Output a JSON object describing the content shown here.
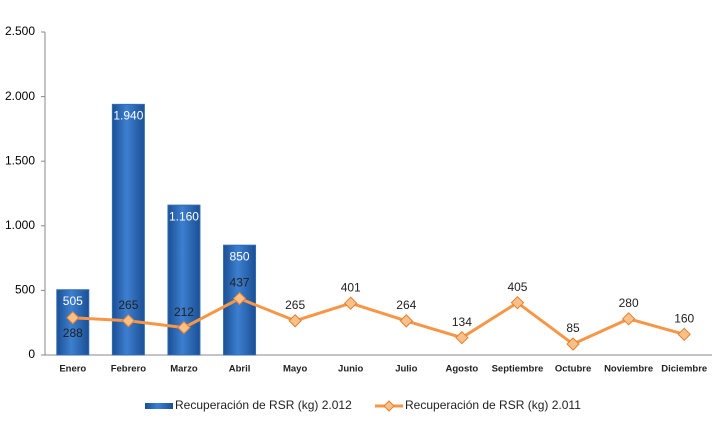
{
  "chart_data": {
    "type": "combo",
    "categories": [
      "Enero",
      "Febrero",
      "Marzo",
      "Abril",
      "Mayo",
      "Junio",
      "Julio",
      "Agosto",
      "Septiembre",
      "Octubre",
      "Noviembre",
      "Diciembre"
    ],
    "series": [
      {
        "name": "Recuperación de RSR (kg) 2.012",
        "type": "bar",
        "color": "#2f6db5",
        "values": [
          505,
          1940,
          1160,
          850,
          null,
          null,
          null,
          null,
          null,
          null,
          null,
          null
        ],
        "value_labels": [
          "505",
          "1.940",
          "1.160",
          "850",
          null,
          null,
          null,
          null,
          null,
          null,
          null,
          null
        ]
      },
      {
        "name": "Recuperación de RSR (kg) 2.011",
        "type": "line",
        "color": "#f79646",
        "values": [
          288,
          265,
          212,
          437,
          265,
          401,
          264,
          134,
          405,
          85,
          280,
          160
        ]
      }
    ],
    "ylim": [
      0,
      2500
    ],
    "yticks": [
      0,
      500,
      {
        "value": 1000,
        "label": "1.000"
      },
      {
        "value": 1500,
        "label": "1.500"
      },
      {
        "value": 2000,
        "label": "2.000"
      },
      {
        "value": 2500,
        "label": "2.500"
      }
    ],
    "grid": false,
    "legend": "bottom"
  }
}
